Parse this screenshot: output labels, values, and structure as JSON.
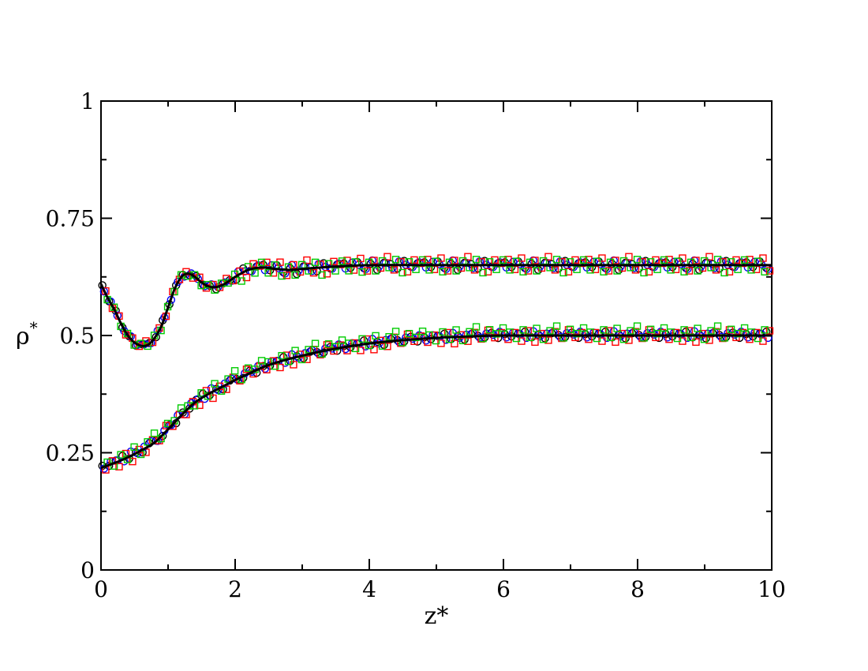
{
  "chart_data": {
    "type": "scatter",
    "xlabel": "z*",
    "ylabel": "ρ",
    "ylabel_sup": "*",
    "xlim": [
      0,
      10
    ],
    "ylim": [
      0,
      1
    ],
    "x_ticks": [
      0,
      2,
      4,
      6,
      8,
      10
    ],
    "x_tick_labels": [
      "0",
      "2",
      "4",
      "6",
      "8",
      "10"
    ],
    "y_ticks": [
      0,
      0.25,
      0.5,
      0.75,
      1
    ],
    "y_tick_labels": [
      "0",
      "0.25",
      "0.5",
      "0.75",
      "1"
    ],
    "grid": false,
    "colors": {
      "line": "#000000",
      "black_circles": "#000000",
      "blue_circles": "#0000ff",
      "red_squares": "#ff0000",
      "green_squares": "#00cc00"
    },
    "curves": [
      {
        "x": [
          0,
          0.1,
          0.2,
          0.3,
          0.4,
          0.5,
          0.6,
          0.7,
          0.8,
          0.9,
          1.0,
          1.1,
          1.2,
          1.3,
          1.4,
          1.5,
          1.6,
          1.7,
          1.8,
          1.9,
          2.0,
          2.2,
          2.4,
          2.6,
          2.8,
          3.0,
          3.5,
          4.0,
          5.0,
          6.0,
          7.0,
          8.0,
          9.0,
          10.0
        ],
        "y": [
          0.61,
          0.58,
          0.555,
          0.525,
          0.5,
          0.485,
          0.478,
          0.48,
          0.495,
          0.52,
          0.56,
          0.6,
          0.625,
          0.632,
          0.625,
          0.613,
          0.605,
          0.603,
          0.607,
          0.615,
          0.625,
          0.64,
          0.645,
          0.642,
          0.64,
          0.642,
          0.647,
          0.65,
          0.65,
          0.65,
          0.65,
          0.65,
          0.65,
          0.65
        ]
      },
      {
        "x": [
          0,
          0.2,
          0.4,
          0.6,
          0.8,
          1.0,
          1.2,
          1.4,
          1.6,
          1.8,
          2.0,
          2.5,
          3.0,
          3.5,
          4.0,
          4.5,
          5.0,
          5.5,
          6.0,
          7.0,
          8.0,
          9.0,
          10.0
        ],
        "y": [
          0.218,
          0.228,
          0.24,
          0.255,
          0.272,
          0.3,
          0.33,
          0.357,
          0.375,
          0.39,
          0.405,
          0.437,
          0.457,
          0.472,
          0.483,
          0.49,
          0.495,
          0.498,
          0.5,
          0.5,
          0.5,
          0.5,
          0.5
        ]
      }
    ],
    "scatter": [
      {
        "marker": "circle",
        "color": "#000000",
        "upper_offsets": [
          0.006,
          -0.004,
          0.008,
          -0.006,
          0.003,
          -0.01,
          0.005,
          0.002,
          -0.007,
          0.009,
          -0.003,
          0.004
        ],
        "lower_offsets": [
          0.003,
          -0.002,
          0.004,
          0.008,
          -0.004,
          0.002,
          -0.006,
          0.005,
          0.001,
          -0.003,
          0.006,
          -0.005
        ]
      },
      {
        "marker": "circle",
        "color": "#0000ff",
        "upper_offsets": [
          -0.005,
          0.007,
          0.002,
          -0.008,
          0.01,
          -0.003,
          0.005,
          -0.006,
          0.008,
          0.001,
          -0.004,
          0.006
        ],
        "lower_offsets": [
          -0.004,
          0.006,
          0.003,
          -0.005,
          0.009,
          -0.002,
          0.004,
          0.007,
          -0.003,
          0.005,
          0.002,
          0.008
        ]
      },
      {
        "marker": "square",
        "color": "#ff0000",
        "upper_offsets": [
          0.012,
          -0.009,
          0.015,
          -0.012,
          0.01,
          -0.006,
          0.018,
          -0.01,
          0.007,
          -0.014,
          0.011,
          0.004
        ],
        "lower_offsets": [
          -0.008,
          0.006,
          -0.012,
          0.01,
          -0.014,
          0.004,
          -0.01,
          0.008,
          -0.006,
          0.012,
          -0.004,
          0.006
        ]
      },
      {
        "marker": "square",
        "color": "#00cc00",
        "upper_offsets": [
          -0.01,
          0.008,
          -0.014,
          0.006,
          -0.012,
          0.009,
          -0.005,
          0.012,
          -0.016,
          0.007,
          -0.009,
          0.011
        ],
        "lower_offsets": [
          0.007,
          -0.006,
          0.012,
          -0.004,
          0.015,
          -0.008,
          0.01,
          0.02,
          -0.005,
          0.013,
          0.004,
          0.016
        ]
      }
    ]
  }
}
